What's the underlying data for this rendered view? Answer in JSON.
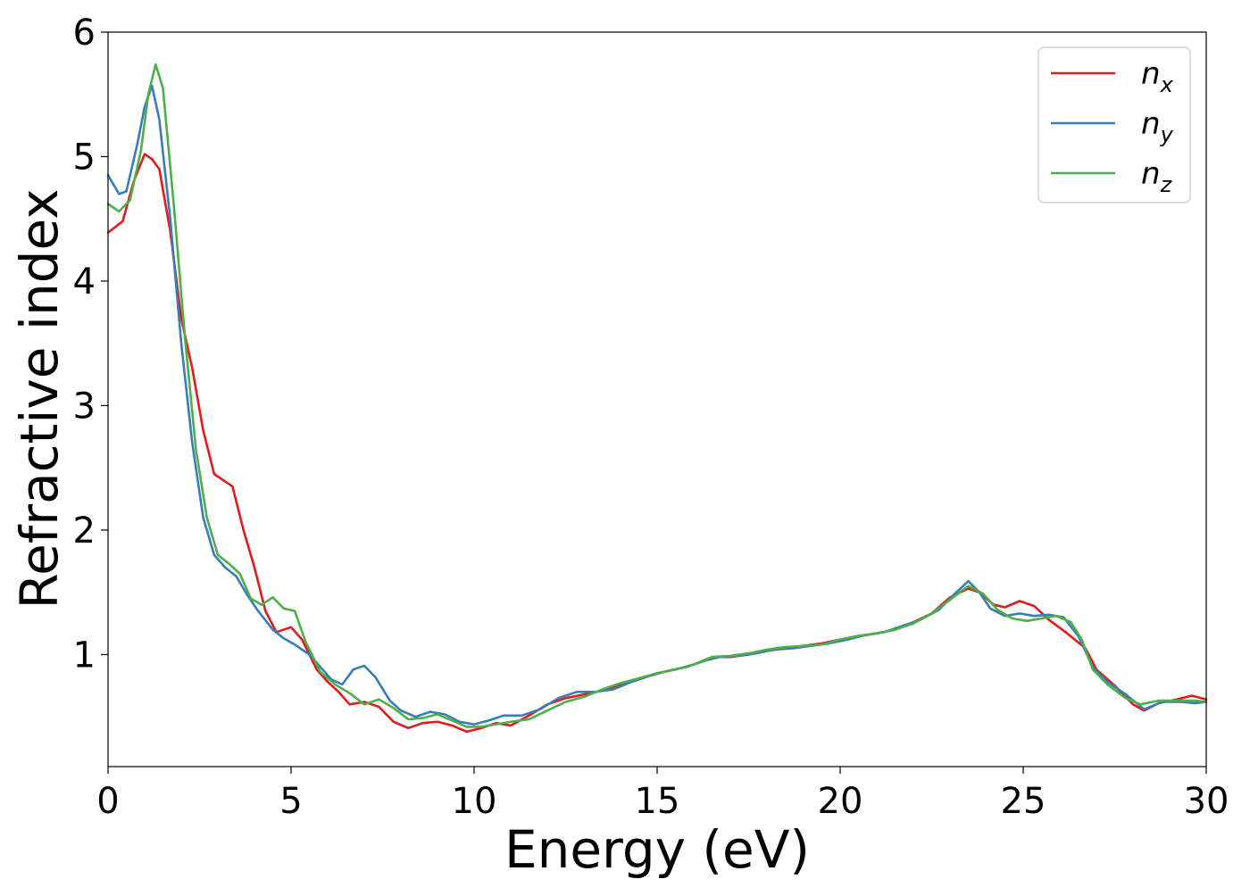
{
  "chart_data": {
    "type": "line",
    "title": "",
    "xlabel": "Energy (eV)",
    "ylabel": "Refractive index",
    "xlim": [
      0,
      30
    ],
    "ylim": [
      0.1,
      6.0
    ],
    "x_ticks": [
      0,
      5,
      10,
      15,
      20,
      25,
      30
    ],
    "y_ticks": [
      1,
      2,
      3,
      4,
      5,
      6
    ],
    "x_tick_labels": [
      "0",
      "5",
      "10",
      "15",
      "20",
      "25",
      "30"
    ],
    "y_tick_labels": [
      "1",
      "2",
      "3",
      "4",
      "5",
      "6"
    ],
    "grid": false,
    "legend_position": "top-right",
    "series": [
      {
        "name": "n",
        "name_subscript": "x",
        "color": "#e41a1c",
        "points": [
          [
            0,
            4.39
          ],
          [
            0.4,
            4.48
          ],
          [
            0.7,
            4.8
          ],
          [
            1.0,
            5.02
          ],
          [
            1.2,
            4.98
          ],
          [
            1.4,
            4.9
          ],
          [
            1.7,
            4.4
          ],
          [
            2.0,
            3.7
          ],
          [
            2.3,
            3.3
          ],
          [
            2.6,
            2.8
          ],
          [
            2.9,
            2.45
          ],
          [
            3.2,
            2.39
          ],
          [
            3.4,
            2.35
          ],
          [
            3.7,
            2.0
          ],
          [
            4.0,
            1.7
          ],
          [
            4.3,
            1.35
          ],
          [
            4.6,
            1.18
          ],
          [
            5.0,
            1.22
          ],
          [
            5.3,
            1.12
          ],
          [
            5.7,
            0.88
          ],
          [
            6.0,
            0.78
          ],
          [
            6.3,
            0.7
          ],
          [
            6.6,
            0.6
          ],
          [
            7.0,
            0.62
          ],
          [
            7.4,
            0.58
          ],
          [
            7.8,
            0.46
          ],
          [
            8.2,
            0.41
          ],
          [
            8.6,
            0.45
          ],
          [
            9.0,
            0.46
          ],
          [
            9.4,
            0.43
          ],
          [
            9.8,
            0.38
          ],
          [
            10.2,
            0.41
          ],
          [
            10.6,
            0.45
          ],
          [
            11.0,
            0.43
          ],
          [
            11.5,
            0.51
          ],
          [
            12.0,
            0.6
          ],
          [
            12.5,
            0.65
          ],
          [
            13.0,
            0.68
          ],
          [
            13.5,
            0.71
          ],
          [
            14.0,
            0.76
          ],
          [
            14.5,
            0.8
          ],
          [
            15.0,
            0.85
          ],
          [
            15.5,
            0.88
          ],
          [
            16.0,
            0.92
          ],
          [
            16.5,
            0.98
          ],
          [
            17.0,
            0.98
          ],
          [
            17.5,
            1.0
          ],
          [
            18.0,
            1.03
          ],
          [
            18.5,
            1.05
          ],
          [
            19.0,
            1.07
          ],
          [
            19.5,
            1.09
          ],
          [
            20.0,
            1.12
          ],
          [
            20.5,
            1.15
          ],
          [
            21.0,
            1.17
          ],
          [
            21.5,
            1.2
          ],
          [
            22.0,
            1.26
          ],
          [
            22.5,
            1.33
          ],
          [
            23.0,
            1.46
          ],
          [
            23.5,
            1.53
          ],
          [
            23.8,
            1.5
          ],
          [
            24.2,
            1.4
          ],
          [
            24.5,
            1.38
          ],
          [
            24.9,
            1.43
          ],
          [
            25.3,
            1.39
          ],
          [
            25.7,
            1.28
          ],
          [
            26.2,
            1.17
          ],
          [
            26.7,
            1.05
          ],
          [
            27.0,
            0.88
          ],
          [
            27.5,
            0.75
          ],
          [
            28.0,
            0.6
          ],
          [
            28.3,
            0.55
          ],
          [
            28.7,
            0.61
          ],
          [
            29.2,
            0.64
          ],
          [
            29.6,
            0.67
          ],
          [
            30.0,
            0.64
          ]
        ]
      },
      {
        "name": "n",
        "name_subscript": "y",
        "color": "#377eb8",
        "points": [
          [
            0,
            4.85
          ],
          [
            0.3,
            4.7
          ],
          [
            0.5,
            4.72
          ],
          [
            0.8,
            5.1
          ],
          [
            1.0,
            5.4
          ],
          [
            1.2,
            5.57
          ],
          [
            1.4,
            5.3
          ],
          [
            1.7,
            4.5
          ],
          [
            2.0,
            3.5
          ],
          [
            2.3,
            2.7
          ],
          [
            2.6,
            2.1
          ],
          [
            2.9,
            1.8
          ],
          [
            3.2,
            1.7
          ],
          [
            3.5,
            1.63
          ],
          [
            3.8,
            1.48
          ],
          [
            4.1,
            1.35
          ],
          [
            4.5,
            1.2
          ],
          [
            4.8,
            1.13
          ],
          [
            5.1,
            1.08
          ],
          [
            5.5,
            1.0
          ],
          [
            5.8,
            0.9
          ],
          [
            6.1,
            0.8
          ],
          [
            6.4,
            0.76
          ],
          [
            6.7,
            0.88
          ],
          [
            7.0,
            0.91
          ],
          [
            7.3,
            0.82
          ],
          [
            7.7,
            0.63
          ],
          [
            8.0,
            0.55
          ],
          [
            8.4,
            0.5
          ],
          [
            8.8,
            0.54
          ],
          [
            9.2,
            0.52
          ],
          [
            9.6,
            0.46
          ],
          [
            10.0,
            0.44
          ],
          [
            10.4,
            0.47
          ],
          [
            10.8,
            0.51
          ],
          [
            11.3,
            0.51
          ],
          [
            11.8,
            0.56
          ],
          [
            12.3,
            0.65
          ],
          [
            12.8,
            0.7
          ],
          [
            13.3,
            0.7
          ],
          [
            13.8,
            0.72
          ],
          [
            14.3,
            0.78
          ],
          [
            14.8,
            0.83
          ],
          [
            15.3,
            0.87
          ],
          [
            15.8,
            0.9
          ],
          [
            16.3,
            0.95
          ],
          [
            16.7,
            0.98
          ],
          [
            17.2,
            0.99
          ],
          [
            17.7,
            1.01
          ],
          [
            18.2,
            1.04
          ],
          [
            18.7,
            1.05
          ],
          [
            19.2,
            1.07
          ],
          [
            19.7,
            1.09
          ],
          [
            20.2,
            1.12
          ],
          [
            20.6,
            1.15
          ],
          [
            21.2,
            1.18
          ],
          [
            21.7,
            1.23
          ],
          [
            22.2,
            1.28
          ],
          [
            22.7,
            1.36
          ],
          [
            23.1,
            1.48
          ],
          [
            23.5,
            1.59
          ],
          [
            23.8,
            1.5
          ],
          [
            24.1,
            1.37
          ],
          [
            24.5,
            1.31
          ],
          [
            24.9,
            1.33
          ],
          [
            25.3,
            1.31
          ],
          [
            25.7,
            1.32
          ],
          [
            26.1,
            1.3
          ],
          [
            26.5,
            1.15
          ],
          [
            26.9,
            0.9
          ],
          [
            27.3,
            0.78
          ],
          [
            27.8,
            0.68
          ],
          [
            28.3,
            0.56
          ],
          [
            28.8,
            0.62
          ],
          [
            29.3,
            0.62
          ],
          [
            29.7,
            0.61
          ],
          [
            30.0,
            0.62
          ]
        ]
      },
      {
        "name": "n",
        "name_subscript": "z",
        "color": "#4daf4a",
        "points": [
          [
            0,
            4.62
          ],
          [
            0.3,
            4.56
          ],
          [
            0.6,
            4.65
          ],
          [
            0.9,
            5.05
          ],
          [
            1.1,
            5.5
          ],
          [
            1.3,
            5.74
          ],
          [
            1.5,
            5.55
          ],
          [
            1.8,
            4.6
          ],
          [
            2.1,
            3.55
          ],
          [
            2.4,
            2.65
          ],
          [
            2.7,
            2.1
          ],
          [
            3.0,
            1.8
          ],
          [
            3.3,
            1.73
          ],
          [
            3.6,
            1.65
          ],
          [
            3.9,
            1.45
          ],
          [
            4.2,
            1.4
          ],
          [
            4.5,
            1.46
          ],
          [
            4.8,
            1.37
          ],
          [
            5.1,
            1.35
          ],
          [
            5.4,
            1.1
          ],
          [
            5.8,
            0.86
          ],
          [
            6.2,
            0.76
          ],
          [
            6.6,
            0.69
          ],
          [
            7.0,
            0.6
          ],
          [
            7.4,
            0.64
          ],
          [
            7.8,
            0.57
          ],
          [
            8.2,
            0.48
          ],
          [
            8.6,
            0.49
          ],
          [
            9.0,
            0.52
          ],
          [
            9.4,
            0.47
          ],
          [
            9.8,
            0.42
          ],
          [
            10.2,
            0.42
          ],
          [
            10.6,
            0.44
          ],
          [
            11.0,
            0.46
          ],
          [
            11.5,
            0.48
          ],
          [
            12.0,
            0.55
          ],
          [
            12.5,
            0.62
          ],
          [
            13.0,
            0.66
          ],
          [
            13.5,
            0.72
          ],
          [
            14.0,
            0.77
          ],
          [
            14.5,
            0.81
          ],
          [
            15.0,
            0.85
          ],
          [
            15.5,
            0.88
          ],
          [
            16.0,
            0.92
          ],
          [
            16.5,
            0.98
          ],
          [
            17.0,
            0.99
          ],
          [
            17.5,
            1.01
          ],
          [
            18.0,
            1.04
          ],
          [
            18.5,
            1.06
          ],
          [
            19.0,
            1.07
          ],
          [
            19.5,
            1.08
          ],
          [
            20.0,
            1.12
          ],
          [
            20.5,
            1.15
          ],
          [
            21.0,
            1.17
          ],
          [
            21.5,
            1.2
          ],
          [
            22.0,
            1.25
          ],
          [
            22.5,
            1.33
          ],
          [
            23.0,
            1.44
          ],
          [
            23.5,
            1.55
          ],
          [
            23.9,
            1.49
          ],
          [
            24.3,
            1.36
          ],
          [
            24.7,
            1.29
          ],
          [
            25.1,
            1.27
          ],
          [
            25.5,
            1.29
          ],
          [
            25.9,
            1.31
          ],
          [
            26.3,
            1.26
          ],
          [
            26.6,
            1.12
          ],
          [
            26.9,
            0.88
          ],
          [
            27.3,
            0.76
          ],
          [
            27.8,
            0.65
          ],
          [
            28.2,
            0.6
          ],
          [
            28.7,
            0.63
          ],
          [
            29.2,
            0.63
          ],
          [
            29.7,
            0.63
          ],
          [
            30.0,
            0.62
          ]
        ]
      }
    ]
  }
}
